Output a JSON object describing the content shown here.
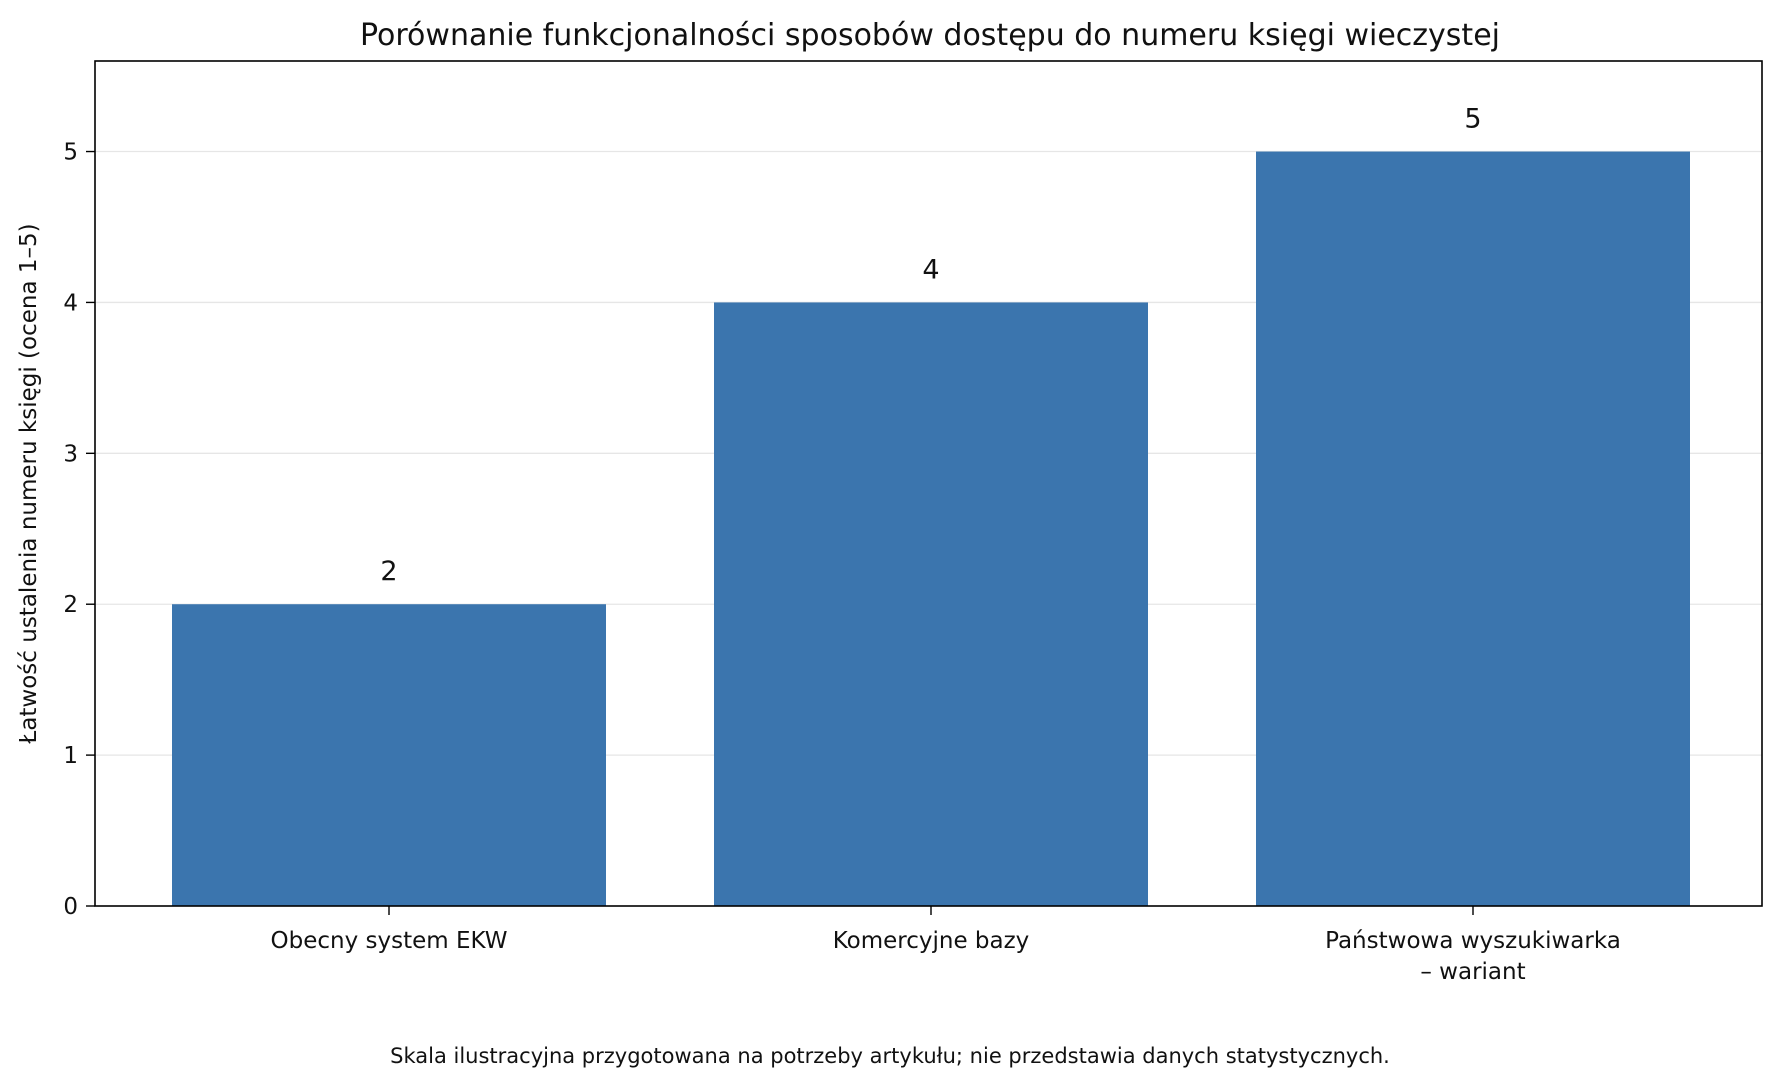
{
  "chart_data": {
    "type": "bar",
    "title": "Porównanie funkcjonalności sposobów dostępu do numeru księgi wieczystej",
    "categories": [
      [
        "Obecny system EKW"
      ],
      [
        "Komercyjne bazy"
      ],
      [
        "Państwowa wyszukiwarka",
        "– wariant"
      ]
    ],
    "values": [
      2,
      4,
      5
    ],
    "data_labels": [
      "2",
      "4",
      "5"
    ],
    "xlabel": "",
    "ylabel": "Łatwość ustalenia numeru księgi (ocena 1–5)",
    "ylim": [
      0,
      5.6
    ],
    "yticks": [
      0,
      1,
      2,
      3,
      4,
      5
    ],
    "grid": "horizontal",
    "legend": "none",
    "bar_color": "#3b75ae",
    "footnote": "Skala ilustracyjna przygotowana na potrzeby artykułu; nie przedstawia danych statystycznych."
  }
}
